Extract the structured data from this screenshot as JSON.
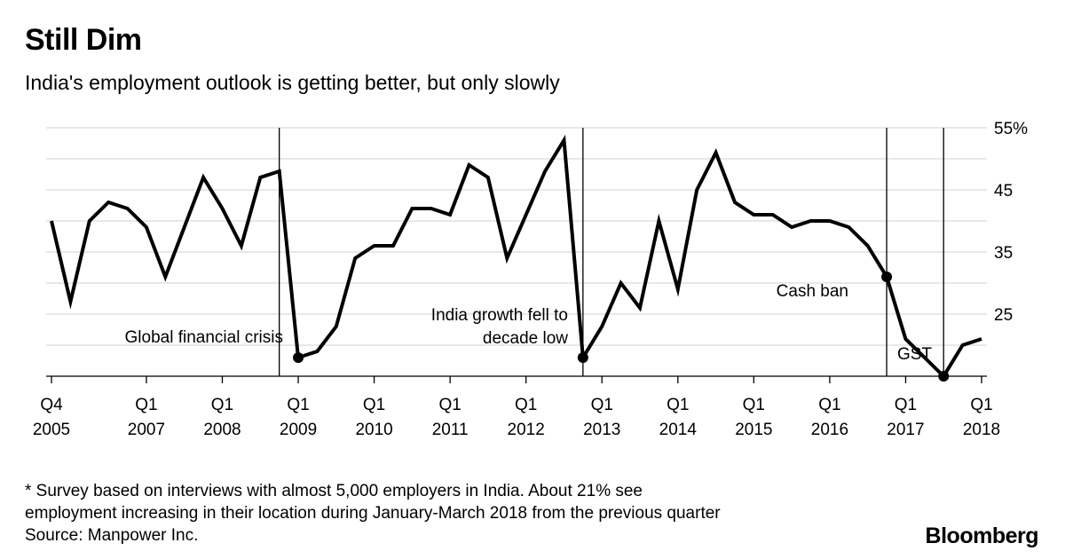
{
  "header": {
    "title": "Still Dim",
    "subtitle": "India's employment outlook is getting better, but only slowly"
  },
  "footer": {
    "note_line1": "* Survey based on interviews with almost 5,000 employers in India. About 21% see",
    "note_line2": "employment increasing in their location during January-March 2018 from the previous quarter",
    "source": "Source: Manpower Inc.",
    "brand": "Bloomberg"
  },
  "chart_data": {
    "type": "line",
    "title": "Still Dim",
    "subtitle": "India's employment outlook is getting better, but only slowly",
    "ylim": [
      15,
      55
    ],
    "y_ticks": [
      {
        "value": 55,
        "label": "55%"
      },
      {
        "value": 45,
        "label": "45"
      },
      {
        "value": 35,
        "label": "35"
      },
      {
        "value": 25,
        "label": "25"
      }
    ],
    "x_ticks": [
      {
        "quarter": "2005-Q4",
        "line1": "Q4",
        "line2": "2005"
      },
      {
        "quarter": "2007-Q1",
        "line1": "Q1",
        "line2": "2007"
      },
      {
        "quarter": "2008-Q1",
        "line1": "Q1",
        "line2": "2008"
      },
      {
        "quarter": "2009-Q1",
        "line1": "Q1",
        "line2": "2009"
      },
      {
        "quarter": "2010-Q1",
        "line1": "Q1",
        "line2": "2010"
      },
      {
        "quarter": "2011-Q1",
        "line1": "Q1",
        "line2": "2011"
      },
      {
        "quarter": "2012-Q1",
        "line1": "Q1",
        "line2": "2012"
      },
      {
        "quarter": "2013-Q1",
        "line1": "Q1",
        "line2": "2013"
      },
      {
        "quarter": "2014-Q1",
        "line1": "Q1",
        "line2": "2014"
      },
      {
        "quarter": "2015-Q1",
        "line1": "Q1",
        "line2": "2015"
      },
      {
        "quarter": "2016-Q1",
        "line1": "Q1",
        "line2": "2016"
      },
      {
        "quarter": "2017-Q1",
        "line1": "Q1",
        "line2": "2017"
      },
      {
        "quarter": "2018-Q1",
        "line1": "Q1",
        "line2": "2018"
      }
    ],
    "grid": true,
    "series": [
      {
        "x": [
          "2005-Q4",
          "2006-Q1",
          "2006-Q2",
          "2006-Q3",
          "2006-Q4",
          "2007-Q1",
          "2007-Q2",
          "2007-Q3",
          "2007-Q4",
          "2008-Q1",
          "2008-Q2",
          "2008-Q3",
          "2008-Q4",
          "2009-Q1",
          "2009-Q2",
          "2009-Q3",
          "2009-Q4",
          "2010-Q1",
          "2010-Q2",
          "2010-Q3",
          "2010-Q4",
          "2011-Q1",
          "2011-Q2",
          "2011-Q3",
          "2011-Q4",
          "2012-Q1",
          "2012-Q2",
          "2012-Q3",
          "2012-Q4",
          "2013-Q1",
          "2013-Q2",
          "2013-Q3",
          "2013-Q4",
          "2014-Q1",
          "2014-Q2",
          "2014-Q3",
          "2014-Q4",
          "2015-Q1",
          "2015-Q2",
          "2015-Q3",
          "2015-Q4",
          "2016-Q1",
          "2016-Q2",
          "2016-Q3",
          "2016-Q4",
          "2017-Q1",
          "2017-Q2",
          "2017-Q3",
          "2017-Q4",
          "2018-Q1"
        ],
        "values": [
          40,
          27,
          40,
          43,
          42,
          39,
          31,
          39,
          47,
          42,
          36,
          47,
          48,
          18,
          19,
          23,
          34,
          36,
          36,
          42,
          42,
          41,
          49,
          47,
          34,
          41,
          48,
          53,
          18,
          23,
          30,
          26,
          40,
          29,
          45,
          51,
          43,
          41,
          41,
          39,
          40,
          40,
          39,
          36,
          31,
          21,
          18,
          15,
          20,
          21
        ]
      }
    ],
    "annotations": [
      {
        "quarter": "2008-Q4",
        "point": "2009-Q1",
        "value": 18,
        "lines": [
          "Global financial crisis"
        ],
        "align": "end"
      },
      {
        "quarter": "2012-Q4",
        "point": "2012-Q4",
        "value": 18,
        "lines": [
          "India growth fell to",
          "decade low"
        ],
        "align": "end"
      },
      {
        "quarter": "2016-Q4",
        "point": "2016-Q4",
        "value": 31,
        "lines": [
          "Cash ban"
        ],
        "align": "end"
      },
      {
        "quarter": "2017-Q3",
        "point": "2017-Q3",
        "value": 15,
        "lines": [
          "GST"
        ],
        "align": "end"
      }
    ]
  }
}
